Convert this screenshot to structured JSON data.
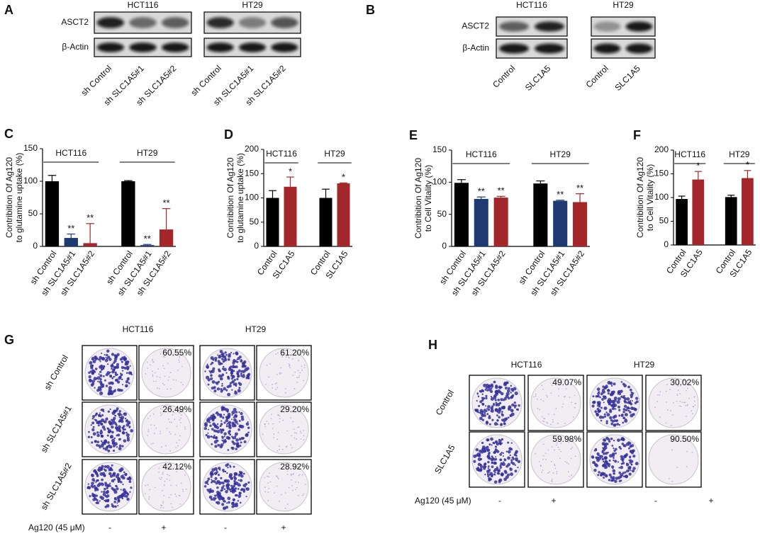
{
  "figure": {
    "panel_A": {
      "letter": "A",
      "cell_lines": [
        "HCT116",
        "HT29"
      ],
      "rows": [
        "ASCT2",
        "β-Actin"
      ],
      "lanes": [
        [
          "sh Control",
          "sh SLC1A5#1",
          "sh SLC1A5#2"
        ],
        [
          "sh Control",
          "sh SLC1A5#1",
          "sh SLC1A5#2"
        ]
      ]
    },
    "panel_B": {
      "letter": "B",
      "cell_lines": [
        "HCT116",
        "HT29"
      ],
      "rows": [
        "ASCT2",
        "β-Actin"
      ],
      "lanes": [
        [
          "Control",
          "SLC1A5"
        ],
        [
          "Control",
          "SLC1A5"
        ]
      ]
    },
    "panel_G": {
      "letter": "G",
      "cell_lines": [
        "HCT116",
        "HT29"
      ],
      "rows": [
        "sh Control",
        "sh SLC1A5#1",
        "sh SLC1A5#2"
      ],
      "percentages": [
        [
          "60.55%",
          "61.20%"
        ],
        [
          "26.49%",
          "29.20%"
        ],
        [
          "42.12%",
          "28.92%"
        ]
      ],
      "treatment": "Ag120 (45 μM)",
      "signs": [
        "-",
        "+",
        "-",
        "+"
      ]
    },
    "panel_H": {
      "letter": "H",
      "cell_lines": [
        "HCT116",
        "HT29"
      ],
      "rows": [
        "Control",
        "SLC1A5"
      ],
      "percentages": [
        [
          "49.07%",
          "30.02%"
        ],
        [
          "59.98%",
          "90.50%"
        ]
      ],
      "treatment": "Ag120 (45 μM)",
      "signs": [
        "-",
        "+",
        "-",
        "+"
      ]
    }
  },
  "chart_data": [
    {
      "type": "bar",
      "panel_letter": "C",
      "ylabel": [
        "Contribition Of Ag120",
        "to glutamine uptake (%)"
      ],
      "groups": [
        "HCT116",
        "HT29"
      ],
      "categories": [
        "sh Control",
        "sh SLC1A5#1",
        "sh SLC1A5#2",
        "sh Control",
        "sh SLC1A5#1",
        "sh SLC1A5#2"
      ],
      "values": [
        100,
        13,
        5,
        100,
        2,
        26
      ],
      "errors": [
        9,
        6,
        30,
        1,
        1,
        32
      ],
      "significance": [
        null,
        "**",
        "**",
        null,
        "**",
        "**"
      ],
      "colors": [
        "#000000",
        "#1f3a73",
        "#a3262a",
        "#000000",
        "#1f3a73",
        "#a3262a"
      ],
      "ylim": [
        0,
        150
      ],
      "yticks": [
        0,
        50,
        100,
        150
      ]
    },
    {
      "type": "bar",
      "panel_letter": "D",
      "ylabel": [
        "Contribition Of Ag120",
        "to glutamine uptake (%)"
      ],
      "groups": [
        "HCT116",
        "HT29"
      ],
      "categories": [
        "Control",
        "SLC1A5",
        "Control",
        "SLC1A5"
      ],
      "values": [
        100,
        123,
        100,
        130
      ],
      "errors": [
        15,
        20,
        18,
        1
      ],
      "significance": [
        null,
        "*",
        null,
        "*"
      ],
      "colors": [
        "#000000",
        "#a3262a",
        "#000000",
        "#a3262a"
      ],
      "ylim": [
        0,
        200
      ],
      "yticks": [
        0,
        50,
        100,
        150,
        200
      ]
    },
    {
      "type": "bar",
      "panel_letter": "E",
      "ylabel": [
        "Contribition Of Ag120",
        "to Cell Vitality (%)"
      ],
      "groups": [
        "HCT116",
        "HT29"
      ],
      "categories": [
        "sh Control",
        "sh SLC1A5#1",
        "sh SLC1A5#2",
        "sh Control",
        "sh SLC1A5#1",
        "sh SLC1A5#2"
      ],
      "values": [
        99,
        74,
        76,
        98,
        71,
        69
      ],
      "errors": [
        5,
        3,
        2,
        4,
        1,
        13
      ],
      "significance": [
        null,
        "**",
        "**",
        null,
        "**",
        "**"
      ],
      "colors": [
        "#000000",
        "#1f3a73",
        "#a3262a",
        "#000000",
        "#1f3a73",
        "#a3262a"
      ],
      "ylim": [
        0,
        150
      ],
      "yticks": [
        0,
        50,
        100,
        150
      ]
    },
    {
      "type": "bar",
      "panel_letter": "F",
      "ylabel": [
        "Contribition Of Ag120",
        "to Cell Vitality (%)"
      ],
      "groups": [
        "HCT116",
        "HT29"
      ],
      "categories": [
        "Control",
        "SLC1A5",
        "Control",
        "SLC1A5"
      ],
      "values": [
        97,
        138,
        101,
        141
      ],
      "errors": [
        6,
        17,
        4,
        16
      ],
      "significance": [
        null,
        "*",
        null,
        "*"
      ],
      "colors": [
        "#000000",
        "#a3262a",
        "#000000",
        "#a3262a"
      ],
      "ylim": [
        0,
        200
      ],
      "yticks": [
        0,
        50,
        100,
        150,
        200
      ]
    }
  ]
}
